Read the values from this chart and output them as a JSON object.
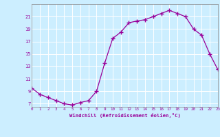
{
  "x": [
    0,
    1,
    2,
    3,
    4,
    5,
    6,
    7,
    8,
    9,
    10,
    11,
    12,
    13,
    14,
    15,
    16,
    17,
    18,
    19,
    20,
    21,
    22,
    23
  ],
  "y": [
    9.5,
    8.5,
    8.0,
    7.5,
    7.0,
    6.8,
    7.2,
    7.5,
    9.0,
    13.5,
    17.5,
    18.5,
    20.0,
    20.3,
    20.5,
    21.0,
    21.5,
    22.0,
    21.5,
    21.0,
    19.0,
    18.0,
    15.0,
    12.5
  ],
  "xlim": [
    0,
    23
  ],
  "ylim": [
    6.5,
    23
  ],
  "yticks": [
    7,
    9,
    11,
    13,
    15,
    17,
    19,
    21
  ],
  "xticks": [
    0,
    1,
    2,
    3,
    4,
    5,
    6,
    7,
    8,
    9,
    10,
    11,
    12,
    13,
    14,
    15,
    16,
    17,
    18,
    19,
    20,
    21,
    22,
    23
  ],
  "xlabel": "Windchill (Refroidissement éolien,°C)",
  "line_color": "#990099",
  "marker": "+",
  "marker_size": 4,
  "background_color": "#cceeff",
  "grid_color": "#aaddcc",
  "label_color": "#990099",
  "tick_label_color": "#990099",
  "spine_color": "#888888"
}
